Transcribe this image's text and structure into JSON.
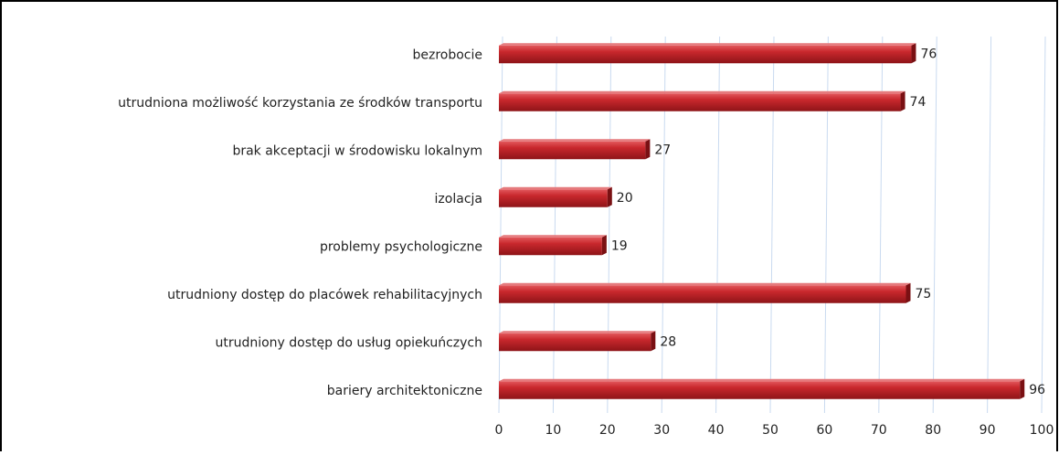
{
  "chart_data": {
    "type": "hbar",
    "categories": [
      "bezrobocie",
      "utrudniona możliwość korzystania ze środków transportu",
      "brak akceptacji w środowisku lokalnym",
      "izolacja",
      "problemy psychologiczne",
      "utrudniony dostęp do placówek rehabilitacyjnych",
      "utrudniony dostęp do usług opiekuńczych",
      "bariery architektoniczne"
    ],
    "values": [
      76,
      74,
      27,
      20,
      19,
      75,
      28,
      96
    ],
    "color": "#c0262b",
    "xlim": [
      0,
      100
    ],
    "xticks": [
      0,
      10,
      20,
      30,
      40,
      50,
      60,
      70,
      80,
      90,
      100
    ],
    "grid": true
  }
}
